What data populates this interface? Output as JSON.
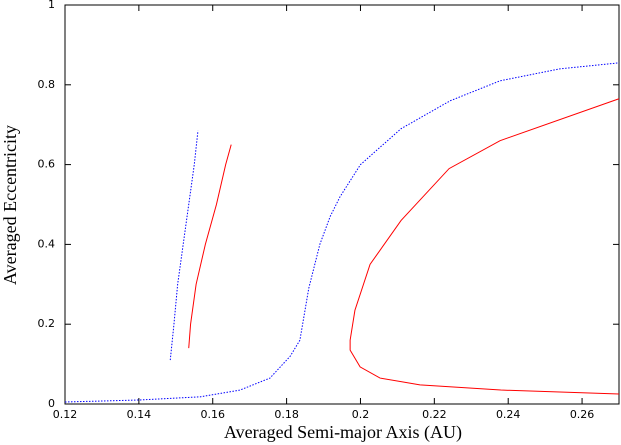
{
  "chart_data": {
    "type": "line",
    "x_label": "Averaged Semi-major Axis (AU)",
    "y_label": "Averaged Eccentricity",
    "xlim": [
      0.12,
      0.27
    ],
    "ylim": [
      0,
      1
    ],
    "xticks": [
      0.12,
      0.14,
      0.16,
      0.18,
      0.2,
      0.22,
      0.24,
      0.26
    ],
    "yticks": [
      0,
      0.2,
      0.4,
      0.6,
      0.8,
      1
    ],
    "series": [
      {
        "color": "#0000ff",
        "style": "dotted",
        "x": [
          0.12,
          0.14,
          0.1566,
          0.1674,
          0.1755,
          0.181,
          0.1836,
          0.186,
          0.189,
          0.1918,
          0.1945,
          0.2,
          0.211,
          0.2243,
          0.2378,
          0.254,
          0.27
        ],
        "values": [
          0.005,
          0.01,
          0.018,
          0.035,
          0.065,
          0.12,
          0.16,
          0.29,
          0.4,
          0.47,
          0.52,
          0.6,
          0.69,
          0.76,
          0.81,
          0.84,
          0.855
        ]
      },
      {
        "color": "#ff0000",
        "style": "solid",
        "x": [
          0.27,
          0.2378,
          0.224,
          0.211,
          0.2026,
          0.1985,
          0.1972,
          0.1972,
          0.1999,
          0.2053,
          0.2161,
          0.238,
          0.27
        ],
        "values": [
          0.765,
          0.66,
          0.59,
          0.46,
          0.35,
          0.235,
          0.16,
          0.135,
          0.093,
          0.065,
          0.048,
          0.035,
          0.025
        ]
      },
      {
        "color": "#0000ff",
        "style": "dotted",
        "x": [
          0.1485,
          0.1495,
          0.1505,
          0.152,
          0.1535,
          0.155,
          0.156
        ],
        "values": [
          0.11,
          0.2,
          0.3,
          0.4,
          0.5,
          0.6,
          0.685
        ]
      },
      {
        "color": "#ff0000",
        "style": "solid",
        "x": [
          0.1535,
          0.154,
          0.1555,
          0.158,
          0.161,
          0.1635,
          0.165
        ],
        "values": [
          0.14,
          0.2,
          0.3,
          0.4,
          0.5,
          0.6,
          0.65
        ]
      }
    ]
  }
}
